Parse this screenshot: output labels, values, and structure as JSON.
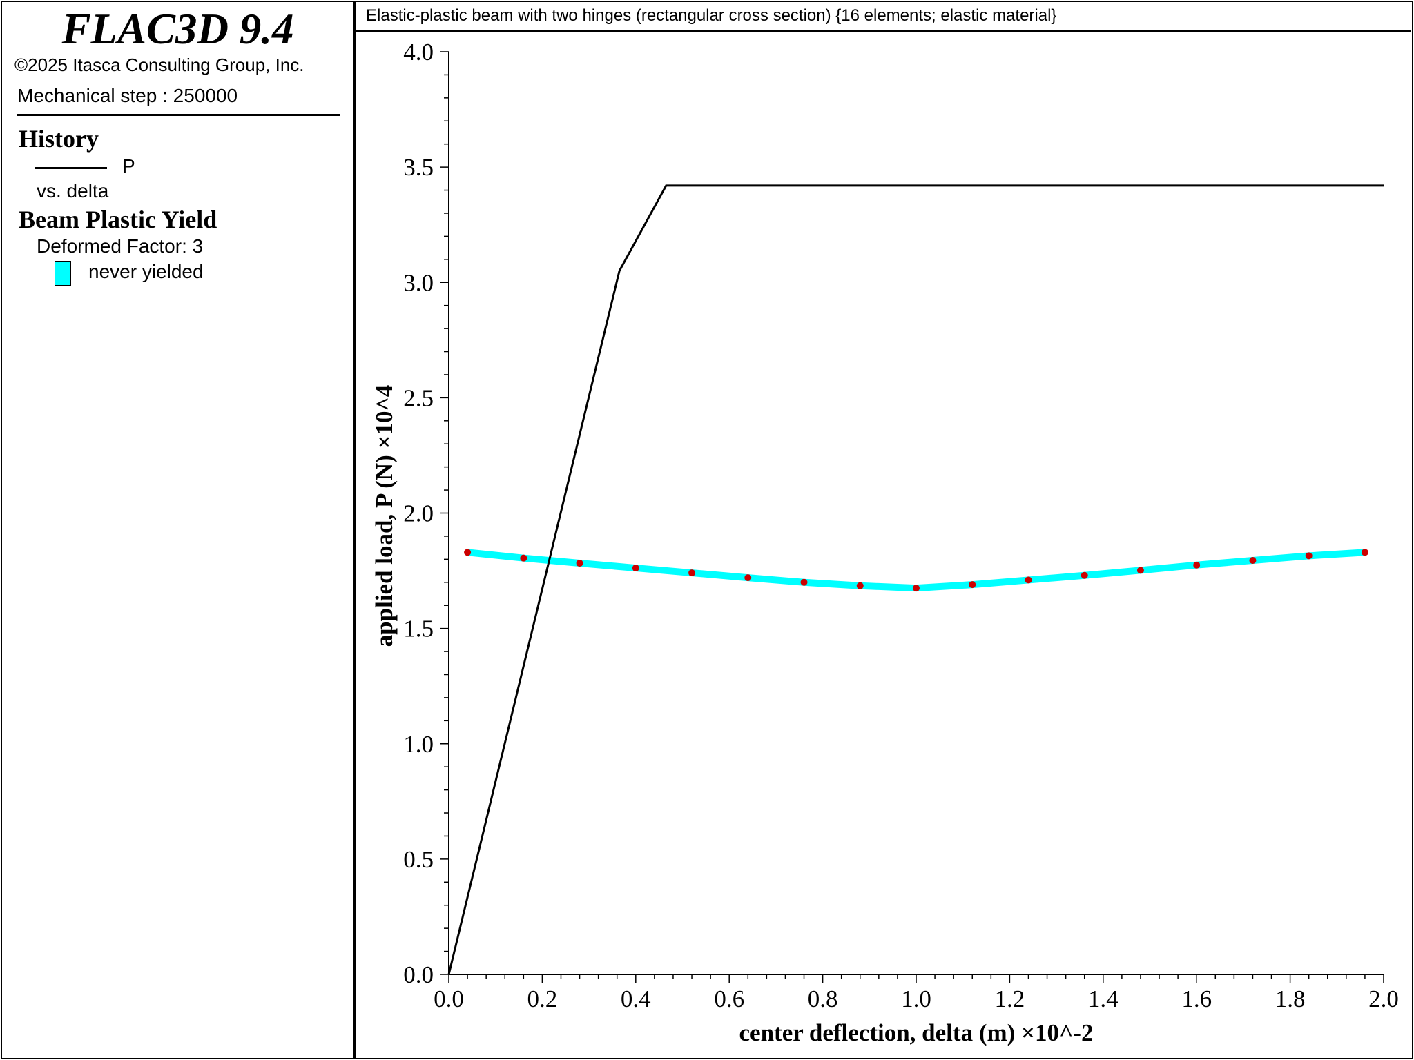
{
  "app": {
    "name": "FLAC3D 9.4",
    "copyright": "©2025 Itasca Consulting Group, Inc.",
    "step_label": "Mechanical step : 250000"
  },
  "legend": {
    "history_heading": "History",
    "history_series": "P",
    "history_vs": "vs. delta",
    "beam_heading": "Beam Plastic Yield",
    "deformed_factor": "Deformed Factor: 3",
    "yield_state": "never yielded"
  },
  "colors": {
    "history_line": "#000000",
    "beam_line": "#00ffff",
    "beam_nodes": "#cc0000"
  },
  "chart_data": [
    {
      "type": "line",
      "title": "Elastic-plastic beam with two hinges (rectangular cross section) {16 elements; elastic material}",
      "xlabel": "center deflection, delta (m) ×10^-2",
      "ylabel": "applied load, P (N) ×10^4",
      "xlim": [
        0.0,
        2.0
      ],
      "ylim": [
        0.0,
        4.0
      ],
      "xticks": [
        "0.0",
        "0.2",
        "0.4",
        "0.6",
        "0.8",
        "1.0",
        "1.2",
        "1.4",
        "1.6",
        "1.8",
        "2.0"
      ],
      "yticks": [
        "0.0",
        "0.5",
        "1.0",
        "1.5",
        "2.0",
        "2.5",
        "3.0",
        "3.5",
        "4.0"
      ],
      "grid": false,
      "series": [
        {
          "name": "P",
          "color": "#000000",
          "points": [
            [
              0.0,
              0.0
            ],
            [
              0.365,
              3.05
            ],
            [
              0.465,
              3.42
            ],
            [
              2.0,
              3.42
            ]
          ]
        }
      ]
    },
    {
      "type": "line",
      "title": "",
      "series": [
        {
          "name": "never yielded",
          "color": "#00ffff",
          "node_color": "#cc0000",
          "points": [
            [
              0.04,
              1.83
            ],
            [
              0.16,
              1.805
            ],
            [
              0.28,
              1.783
            ],
            [
              0.4,
              1.762
            ],
            [
              0.52,
              1.741
            ],
            [
              0.64,
              1.72
            ],
            [
              0.76,
              1.7
            ],
            [
              0.88,
              1.685
            ],
            [
              1.0,
              1.675
            ],
            [
              1.12,
              1.69
            ],
            [
              1.24,
              1.71
            ],
            [
              1.36,
              1.73
            ],
            [
              1.48,
              1.752
            ],
            [
              1.6,
              1.775
            ],
            [
              1.72,
              1.795
            ],
            [
              1.84,
              1.815
            ],
            [
              1.96,
              1.83
            ]
          ]
        }
      ]
    }
  ]
}
